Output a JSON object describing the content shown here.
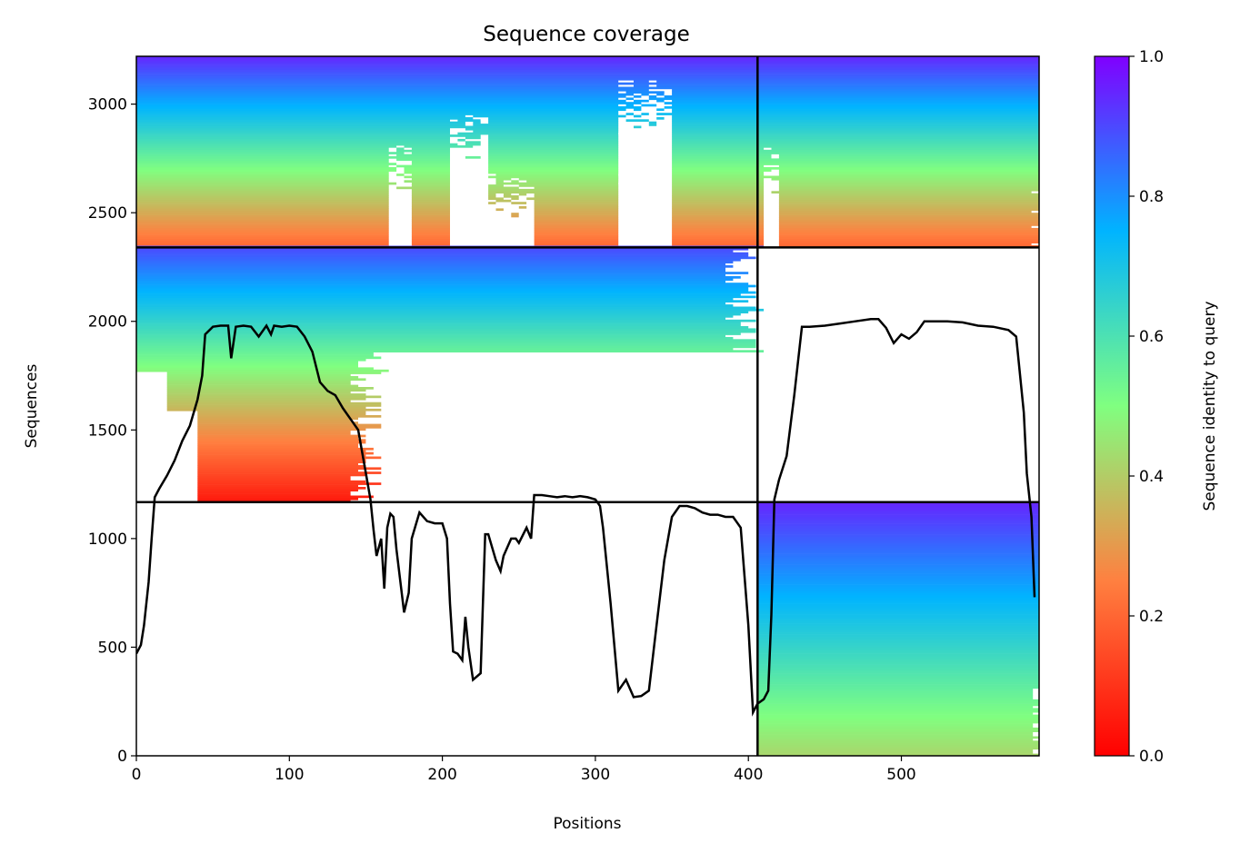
{
  "chart_data": {
    "type": "heatmap",
    "title": "Sequence coverage",
    "xlabel": "Positions",
    "ylabel": "Sequences",
    "xlim": [
      0,
      590
    ],
    "ylim": [
      0,
      3220
    ],
    "xticks": [
      "0",
      "100",
      "200",
      "300",
      "400",
      "500"
    ],
    "yticks": [
      "0",
      "500",
      "1000",
      "1500",
      "2000",
      "2500",
      "3000"
    ],
    "colorbar": {
      "label": "Sequence identity to query",
      "range": [
        0.0,
        1.0
      ],
      "ticks": [
        "0.0",
        "0.2",
        "0.4",
        "0.6",
        "0.8",
        "1.0"
      ],
      "colormap": "rainbow_r",
      "colors": [
        "#ff0000",
        "#ff8040",
        "#80ff80",
        "#00b4ff",
        "#8000ff"
      ]
    },
    "grid": false,
    "chain_boundaries": {
      "x": [
        406
      ],
      "y": [
        1168,
        2340
      ]
    },
    "msa_blocks": [
      {
        "name": "paired",
        "x_range": [
          0,
          590
        ],
        "y_range": [
          2340,
          3220
        ],
        "identity_range_bottom_to_top": [
          0.2,
          0.95
        ],
        "gaps": [
          {
            "x": [
              165,
              180
            ],
            "coverage": 0.6
          },
          {
            "x": [
              205,
              228
            ],
            "coverage": 0.4
          },
          {
            "x": [
              230,
              260
            ],
            "coverage": 0.75
          },
          {
            "x": [
              315,
              350
            ],
            "coverage": 0.25
          },
          {
            "x": [
              410,
              420
            ],
            "coverage": 0.6
          }
        ]
      },
      {
        "name": "chain-A-unpaired",
        "x_range": [
          0,
          406
        ],
        "y_range": [
          1168,
          2340
        ],
        "identity_range_bottom_to_top": [
          0.05,
          0.9
        ],
        "extents_bottom_to_top": [
          {
            "y": [
              1168,
              1580
            ],
            "x": [
              40,
              160
            ]
          },
          {
            "y": [
              1580,
              1760
            ],
            "x": [
              20,
              160
            ]
          },
          {
            "y": [
              1760,
              1850
            ],
            "x": [
              0,
              165
            ]
          },
          {
            "y": [
              1850,
              1970
            ],
            "x": [
              0,
              406
            ]
          },
          {
            "y": [
              1970,
              2340
            ],
            "x": [
              0,
              406
            ]
          }
        ]
      },
      {
        "name": "chain-B-unpaired",
        "x_range": [
          406,
          590
        ],
        "y_range": [
          0,
          1168
        ],
        "identity_range_bottom_to_top": [
          0.42,
          0.95
        ]
      }
    ],
    "coverage_line": {
      "name": "coverage",
      "color": "#000000",
      "x": [
        0,
        3,
        5,
        8,
        10,
        12,
        15,
        20,
        25,
        30,
        35,
        40,
        43,
        45,
        50,
        55,
        60,
        62,
        65,
        70,
        75,
        80,
        85,
        88,
        90,
        95,
        100,
        105,
        110,
        115,
        120,
        125,
        130,
        135,
        140,
        145,
        150,
        153,
        155,
        157,
        160,
        162,
        164,
        166,
        168,
        170,
        175,
        178,
        180,
        185,
        190,
        195,
        200,
        203,
        205,
        207,
        210,
        213,
        215,
        217,
        220,
        225,
        228,
        230,
        235,
        238,
        240,
        245,
        248,
        250,
        255,
        258,
        260,
        265,
        270,
        275,
        280,
        285,
        290,
        295,
        300,
        303,
        305,
        310,
        315,
        320,
        325,
        330,
        335,
        340,
        345,
        350,
        355,
        360,
        365,
        370,
        375,
        380,
        385,
        390,
        395,
        400,
        403,
        406,
        410,
        413,
        415,
        417,
        420,
        425,
        430,
        435,
        440,
        450,
        460,
        470,
        480,
        485,
        490,
        495,
        500,
        505,
        510,
        515,
        520,
        530,
        540,
        550,
        560,
        570,
        575,
        580,
        582,
        585,
        587
      ],
      "y": [
        470,
        510,
        600,
        800,
        1000,
        1190,
        1230,
        1290,
        1360,
        1450,
        1520,
        1640,
        1750,
        1940,
        1975,
        1980,
        1980,
        1830,
        1975,
        1980,
        1975,
        1930,
        1980,
        1940,
        1980,
        1975,
        1980,
        1975,
        1930,
        1860,
        1720,
        1680,
        1660,
        1600,
        1550,
        1500,
        1300,
        1180,
        1040,
        920,
        1000,
        770,
        1050,
        1115,
        1100,
        950,
        660,
        750,
        1000,
        1120,
        1080,
        1070,
        1070,
        1000,
        700,
        480,
        470,
        440,
        640,
        500,
        350,
        380,
        1020,
        1020,
        900,
        850,
        920,
        1000,
        1000,
        980,
        1050,
        1000,
        1200,
        1200,
        1195,
        1190,
        1195,
        1190,
        1195,
        1190,
        1180,
        1150,
        1050,
        700,
        300,
        350,
        270,
        275,
        300,
        600,
        900,
        1100,
        1150,
        1150,
        1140,
        1120,
        1110,
        1110,
        1100,
        1100,
        1050,
        600,
        200,
        240,
        260,
        300,
        650,
        1180,
        1270,
        1380,
        1660,
        1975,
        1975,
        1980,
        1990,
        2000,
        2010,
        2010,
        1970,
        1900,
        1940,
        1920,
        1950,
        2000,
        2000,
        2000,
        1995,
        1980,
        1975,
        1960,
        1930,
        1580,
        1300,
        1100,
        730
      ]
    }
  }
}
